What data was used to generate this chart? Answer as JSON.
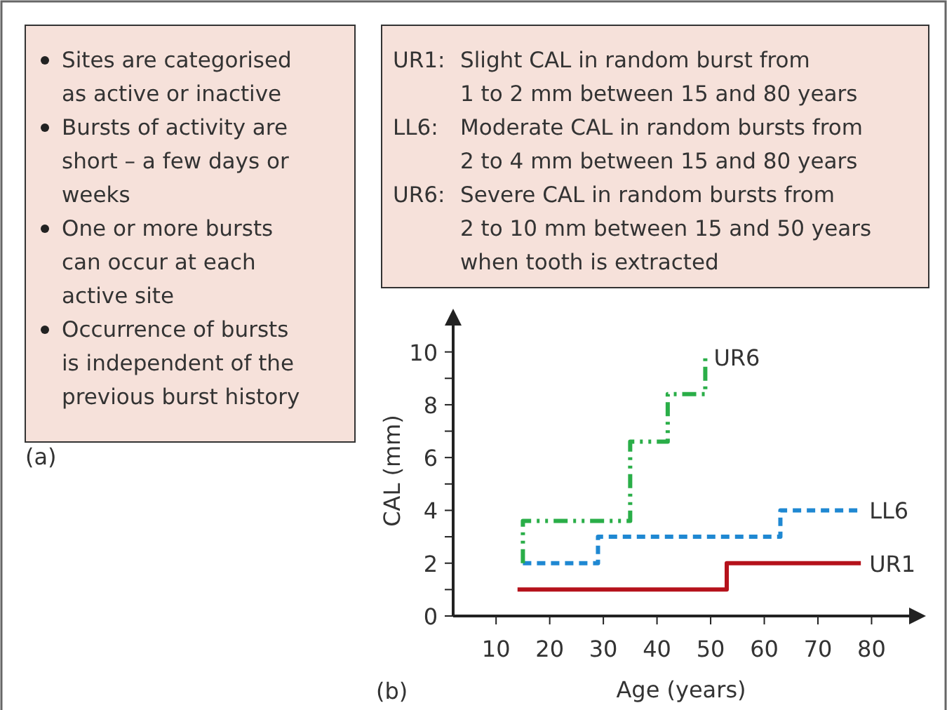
{
  "chart_data": [
    {
      "type": "other",
      "annotations": [
        "Sites are categorised\nas active or inactive",
        "Bursts of activity are\nshort – a few days or\nweeks",
        "One or more bursts\ncan occur at each\nactive site",
        "Occurrence of bursts\nis independent of the\nprevious burst history",
        "(a)"
      ]
    },
    {
      "type": "step",
      "xlabel": "Age (years)",
      "ylabel": "CAL (mm)",
      "xlim": [
        2,
        87
      ],
      "xticks": [
        10,
        20,
        30,
        40,
        50,
        60,
        70,
        80
      ],
      "ylim": [
        0,
        11
      ],
      "yticks": [
        0,
        {
          "value": 1,
          "label": null
        },
        2,
        {
          "value": 3,
          "label": null
        },
        4,
        {
          "value": 5,
          "label": null
        },
        6,
        {
          "value": 7,
          "label": null
        },
        8,
        {
          "value": 9,
          "label": null
        },
        10
      ],
      "series": [
        {
          "name": "UR1",
          "color": "#b5121b",
          "line_style": "solid",
          "x": [
            14,
            53,
            78
          ],
          "values": [
            1,
            2,
            2
          ]
        },
        {
          "name": "LL6",
          "color": "#1f88d2",
          "line_style": "dashed",
          "x": [
            15,
            29,
            63,
            78
          ],
          "values": [
            2,
            3,
            4,
            4
          ]
        },
        {
          "name": "UR6",
          "color": "#2aae48",
          "line_style": "dotted",
          "x": [
            15,
            15,
            35,
            42,
            49
          ],
          "values": [
            2,
            3.6,
            6.6,
            8.4,
            9.8
          ]
        }
      ],
      "annotations": [
        "UR1:\tSlight CAL in random burst from\n1 to 2 mm between 15 and 80 years",
        "LL6:\tModerate CAL in random bursts from\n2 to 4 mm between 15 and 80 years",
        "UR6:\tSevere CAL in random bursts from\n2 to 10 mm between 15 and 50 years\nwhen tooth is extracted",
        "(b)"
      ]
    }
  ]
}
